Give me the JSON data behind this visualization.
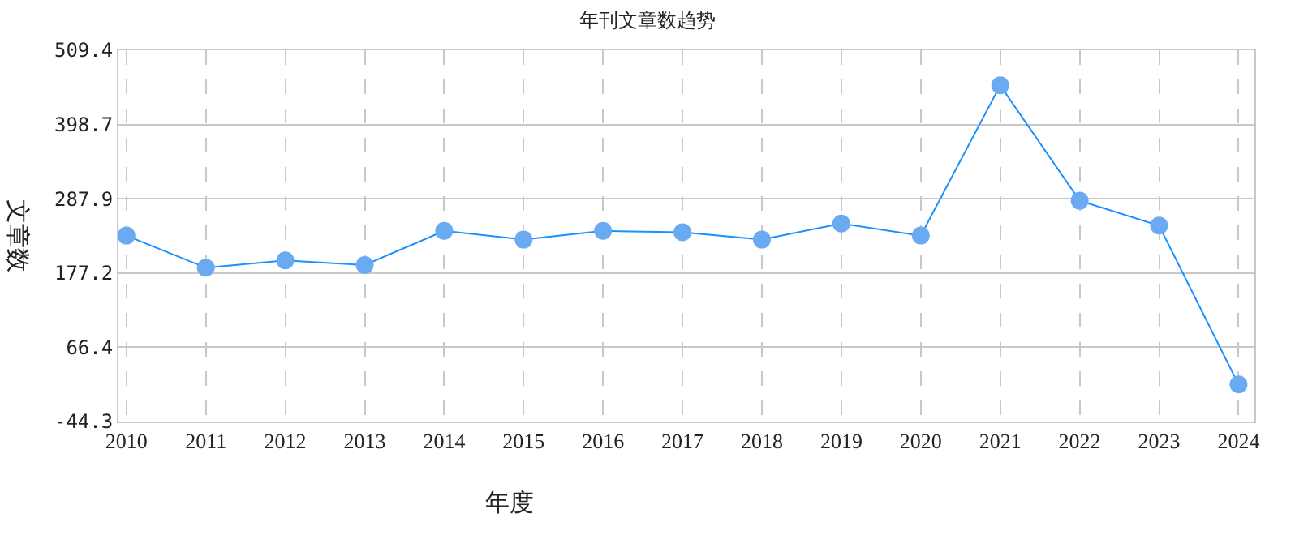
{
  "chart_data": {
    "type": "line",
    "title": "年刊文章数趋势",
    "xlabel": "年度",
    "ylabel": "文章数",
    "categories": [
      "2010",
      "2011",
      "2012",
      "2013",
      "2014",
      "2015",
      "2016",
      "2017",
      "2018",
      "2019",
      "2020",
      "2021",
      "2022",
      "2023",
      "2024"
    ],
    "series": [
      {
        "color": "#1a8fff",
        "values": [
          233,
          185,
          196,
          189,
          240,
          227,
          240,
          238,
          227,
          251,
          233,
          457,
          285,
          248,
          11
        ]
      }
    ],
    "ylim": [
      -44.3,
      509.4
    ],
    "yticks": [
      -44.3,
      66.4,
      177.2,
      287.9,
      398.7,
      509.4
    ],
    "grid": true,
    "marker": "circle",
    "line_style": "solid"
  }
}
